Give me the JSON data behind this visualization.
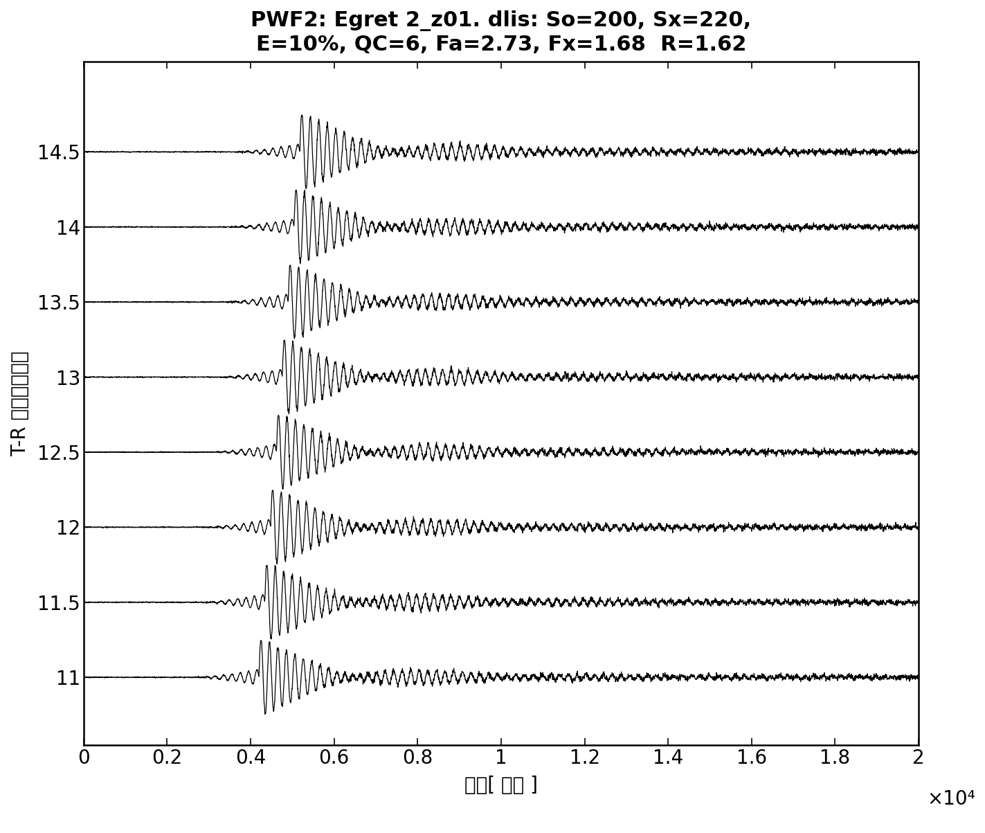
{
  "title_line1": "PWF2: Egret 2_z01. dlis: So=200, Sx=220,",
  "title_line2": "E=10%, QC=6, Fa=2.73, Fx=1.68  R=1.62",
  "xlabel": "时间[ 微秒 ]",
  "ylabel": "T-R 间隔＼英尺］",
  "xlabel_sci": "×10⁴",
  "x_min": 0,
  "x_max": 20000,
  "y_values": [
    11.0,
    11.5,
    12.0,
    12.5,
    13.0,
    13.5,
    14.0,
    14.5
  ],
  "x_ticks": [
    0,
    2000,
    4000,
    6000,
    8000,
    10000,
    12000,
    14000,
    16000,
    18000,
    20000
  ],
  "x_tick_labels": [
    "0",
    "0.2",
    "0.4",
    "0.6",
    "0.8",
    "1",
    "1.2",
    "1.4",
    "1.6",
    "1.8",
    "2"
  ],
  "background_color": "#ffffff",
  "waveform_color": "#000000",
  "title_fontsize": 22,
  "label_fontsize": 20,
  "tick_fontsize": 20
}
